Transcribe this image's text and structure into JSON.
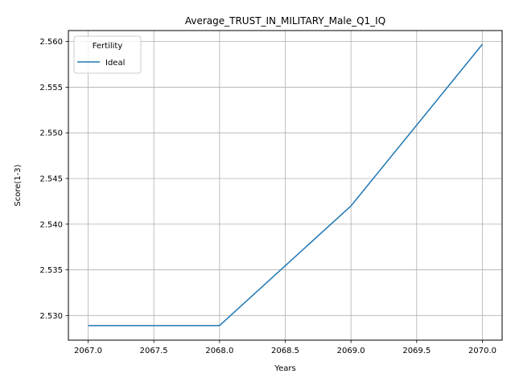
{
  "chart_data": {
    "type": "line",
    "title": "Average_TRUST_IN_MILITARY_Male_Q1_IQ",
    "xlabel": "Years",
    "ylabel": "Score(1-3)",
    "xlim": [
      2066.85,
      2070.15
    ],
    "ylim": [
      2.5273,
      2.5612
    ],
    "x_ticks": [
      2067.0,
      2067.5,
      2068.0,
      2068.5,
      2069.0,
      2069.5,
      2070.0
    ],
    "x_tick_labels": [
      "2067.0",
      "2067.5",
      "2068.0",
      "2068.5",
      "2069.0",
      "2069.5",
      "2070.0"
    ],
    "y_ticks": [
      2.53,
      2.535,
      2.54,
      2.545,
      2.55,
      2.555,
      2.56
    ],
    "y_tick_labels": [
      "2.530",
      "2.535",
      "2.540",
      "2.545",
      "2.550",
      "2.555",
      "2.560"
    ],
    "grid": true,
    "legend": {
      "title": "Fertility",
      "placement": "top-left"
    },
    "x": [
      2067,
      2068,
      2069,
      2070
    ],
    "series": [
      {
        "name": "Ideal",
        "color": "#1f77b4",
        "values": [
          2.5289,
          2.5289,
          2.542,
          2.5597
        ]
      }
    ]
  }
}
